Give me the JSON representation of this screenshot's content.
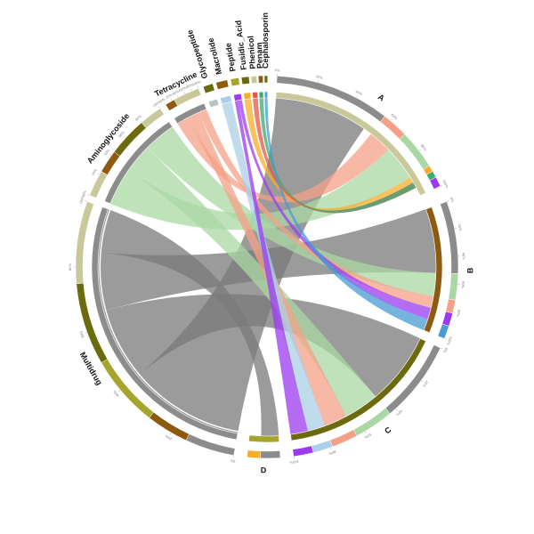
{
  "diagram": {
    "type": "chord",
    "sectors": [
      {
        "id": "A",
        "label": "A",
        "color": "#8c8c8c",
        "group": "sample"
      },
      {
        "id": "B",
        "label": "B",
        "color": "#8c8c8c",
        "group": "sample"
      },
      {
        "id": "C",
        "label": "C",
        "color": "#8c8c8c",
        "group": "sample"
      },
      {
        "id": "D",
        "label": "D",
        "color": "#8c8c8c",
        "group": "sample"
      },
      {
        "id": "Multidrug",
        "label": "Multidrug",
        "color": "#8c8c8c",
        "group": "class"
      },
      {
        "id": "Aminoglycoside",
        "label": "Aminoglycoside",
        "color": "#a9d8a4",
        "group": "class"
      },
      {
        "id": "Tetracycline",
        "label": "Tetracycline",
        "color": "#f4a087",
        "group": "class"
      },
      {
        "id": "Glycopeptide",
        "label": "Glycopeptide",
        "color": "#b5c4c4",
        "group": "class"
      },
      {
        "id": "Macrolide",
        "label": "Macrolide",
        "color": "#abcfe6",
        "group": "class"
      },
      {
        "id": "Peptide",
        "label": "Peptide",
        "color": "#9b3bf0",
        "group": "class"
      },
      {
        "id": "Fusidic_Acid",
        "label": "Fusidic_Acid",
        "color": "#f7ad2a",
        "group": "class"
      },
      {
        "id": "Phenicol",
        "label": "Phenicol",
        "color": "#e8534a",
        "group": "class"
      },
      {
        "id": "Penam",
        "label": "Penam",
        "color": "#3daa6e",
        "group": "class"
      },
      {
        "id": "Cephalosporin",
        "label": "Cephalosporin",
        "color": "#4a9ad4",
        "group": "class"
      }
    ],
    "ring_palette": [
      "#c8c89a",
      "#6b6b0e",
      "#a5a52d",
      "#8e5a0f"
    ],
    "tick_text": {
      "pct": [
        "0%",
        "20%",
        "40%",
        "60%",
        "80%",
        "100%"
      ]
    }
  }
}
